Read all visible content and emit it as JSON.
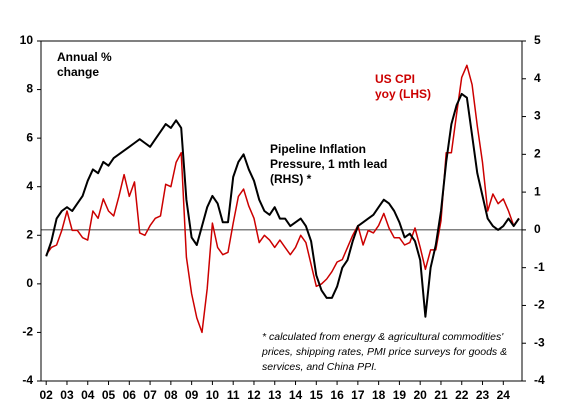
{
  "chart_data": {
    "type": "line",
    "annotations": {
      "left_axis_label": [
        "Annual %",
        "change"
      ],
      "footnote": [
        "* calculated from energy & agricultural commodities'",
        "prices, shipping rates, PMI price surveys for goods &",
        "services, and China PPI."
      ]
    },
    "x": [
      2,
      2.25,
      2.5,
      2.75,
      3,
      3.25,
      3.5,
      3.75,
      4,
      4.25,
      4.5,
      4.75,
      5,
      5.25,
      5.5,
      5.75,
      6,
      6.25,
      6.5,
      6.75,
      7,
      7.25,
      7.5,
      7.75,
      8,
      8.25,
      8.5,
      8.75,
      9,
      9.25,
      9.5,
      9.75,
      10,
      10.25,
      10.5,
      10.75,
      11,
      11.25,
      11.5,
      11.75,
      12,
      12.25,
      12.5,
      12.75,
      13,
      13.25,
      13.5,
      13.75,
      14,
      14.25,
      14.5,
      14.75,
      15,
      15.25,
      15.5,
      15.75,
      16,
      16.25,
      16.5,
      16.75,
      17,
      17.25,
      17.5,
      17.75,
      18,
      18.25,
      18.5,
      18.75,
      19,
      19.25,
      19.5,
      19.75,
      20,
      20.25,
      20.5,
      20.75,
      21,
      21.25,
      21.5,
      21.75,
      22,
      22.25,
      22.5,
      22.75,
      23,
      23.25,
      23.5,
      23.75,
      24,
      24.25,
      24.5,
      24.75
    ],
    "series": [
      {
        "label_lines": [
          "US CPI",
          "yoy (LHS)"
        ],
        "color": "#cc0000",
        "axis": "y",
        "values": [
          1.2,
          1.5,
          1.6,
          2.2,
          3.0,
          2.2,
          2.2,
          1.9,
          1.8,
          3.0,
          2.7,
          3.5,
          3.0,
          2.8,
          3.6,
          4.5,
          3.6,
          4.2,
          2.1,
          2.0,
          2.4,
          2.7,
          2.8,
          4.1,
          4.0,
          5.0,
          5.4,
          1.1,
          -0.4,
          -1.4,
          -2.0,
          -0.2,
          2.5,
          1.5,
          1.2,
          1.3,
          2.5,
          3.6,
          3.9,
          3.2,
          2.7,
          1.7,
          2.0,
          1.8,
          1.5,
          1.8,
          1.5,
          1.2,
          1.5,
          2.0,
          1.7,
          0.8,
          -0.1,
          0.0,
          0.2,
          0.5,
          0.9,
          1.0,
          1.5,
          2.0,
          2.4,
          1.6,
          2.2,
          2.1,
          2.4,
          2.9,
          2.3,
          1.9,
          1.9,
          1.6,
          1.7,
          2.3,
          1.5,
          0.6,
          1.4,
          1.4,
          2.6,
          5.4,
          5.4,
          7.0,
          8.5,
          9.0,
          8.2,
          6.5,
          5.0,
          3.0,
          3.7,
          3.3,
          3.5,
          3.0,
          2.4,
          2.7
        ]
      },
      {
        "label_lines": [
          "Pipeline Inflation",
          "Pressure, 1 mth lead",
          "(RHS) *"
        ],
        "color": "#000000",
        "axis": "y2",
        "values": [
          -0.7,
          -0.3,
          0.3,
          0.5,
          0.6,
          0.5,
          0.7,
          0.9,
          1.3,
          1.6,
          1.5,
          1.8,
          1.7,
          1.9,
          2.0,
          2.1,
          2.2,
          2.3,
          2.4,
          2.3,
          2.2,
          2.4,
          2.6,
          2.8,
          2.7,
          2.9,
          2.7,
          0.8,
          -0.2,
          -0.4,
          0.1,
          0.6,
          0.9,
          0.7,
          0.2,
          0.2,
          1.4,
          1.8,
          2.0,
          1.6,
          1.3,
          0.8,
          0.5,
          0.4,
          0.6,
          0.3,
          0.3,
          0.1,
          0.2,
          0.3,
          0.1,
          -0.3,
          -1.2,
          -1.6,
          -1.8,
          -1.8,
          -1.5,
          -1.0,
          -0.8,
          -0.3,
          0.1,
          0.2,
          0.3,
          0.4,
          0.6,
          0.8,
          0.7,
          0.5,
          0.2,
          -0.2,
          -0.1,
          -0.3,
          -0.8,
          -2.3,
          -1.0,
          -0.4,
          0.5,
          1.8,
          2.8,
          3.3,
          3.6,
          3.5,
          2.5,
          1.5,
          0.9,
          0.3,
          0.1,
          0.0,
          0.1,
          0.3,
          0.1,
          0.3
        ]
      }
    ],
    "xlim": [
      1.75,
      24.9
    ],
    "xticks": [
      {
        "value": 2,
        "label": "02"
      },
      {
        "value": 3,
        "label": "03"
      },
      {
        "value": 4,
        "label": "04"
      },
      {
        "value": 5,
        "label": "05"
      },
      {
        "value": 6,
        "label": "06"
      },
      {
        "value": 7,
        "label": "07"
      },
      {
        "value": 8,
        "label": "08"
      },
      {
        "value": 9,
        "label": "09"
      },
      {
        "value": 10,
        "label": "10"
      },
      {
        "value": 11,
        "label": "11"
      },
      {
        "value": 12,
        "label": "12"
      },
      {
        "value": 13,
        "label": "13"
      },
      {
        "value": 14,
        "label": "14"
      },
      {
        "value": 15,
        "label": "15"
      },
      {
        "value": 16,
        "label": "16"
      },
      {
        "value": 17,
        "label": "17"
      },
      {
        "value": 18,
        "label": "18"
      },
      {
        "value": 19,
        "label": "19"
      },
      {
        "value": 20,
        "label": "20"
      },
      {
        "value": 21,
        "label": "21"
      },
      {
        "value": 22,
        "label": "22"
      },
      {
        "value": 23,
        "label": "23"
      },
      {
        "value": 24,
        "label": "24"
      }
    ],
    "ylim": [
      -4,
      10
    ],
    "yticks": [
      -4,
      -2,
      0,
      2,
      4,
      6,
      8,
      10
    ],
    "y2lim": [
      -4,
      5
    ],
    "y2ticks": [
      -4,
      -3,
      -2,
      -1,
      0,
      1,
      2,
      3,
      4,
      5
    ]
  }
}
